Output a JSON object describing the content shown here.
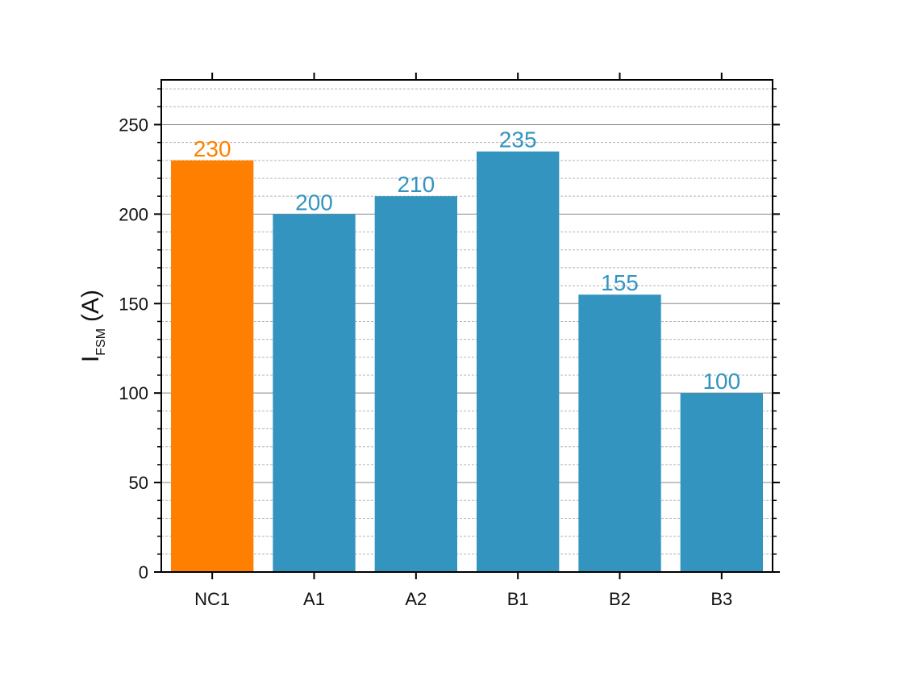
{
  "chart_data": {
    "type": "bar",
    "categories": [
      "NC1",
      "A1",
      "A2",
      "B1",
      "B2",
      "B3"
    ],
    "values": [
      230,
      200,
      210,
      235,
      155,
      100
    ],
    "highlight_category": "NC1",
    "colors": {
      "highlight": "#FF8000",
      "default": "#3494C0"
    },
    "title": "",
    "xlabel": "",
    "ylabel": {
      "main": "I",
      "subscript": "FSM",
      "unit": "(A)"
    },
    "ylim": [
      0,
      275
    ],
    "yticks": [
      0,
      50,
      100,
      150,
      200,
      250
    ],
    "y_minor_step": 10,
    "grid": {
      "major": true,
      "minor": true
    },
    "legend": "none",
    "data_labels": true
  }
}
